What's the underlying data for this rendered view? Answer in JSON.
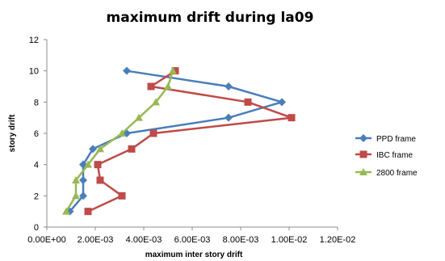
{
  "chart_data": {
    "type": "line",
    "title": "maximum drift during la09",
    "xlabel": "maximum inter story drift",
    "ylabel": "story  drift",
    "xlim": [
      0,
      0.012
    ],
    "ylim": [
      0,
      12
    ],
    "x_ticks": [
      0,
      0.002,
      0.004,
      0.006,
      0.008,
      0.01,
      0.012
    ],
    "x_tick_labels": [
      "0.00E+00",
      "2.00E-03",
      "4.00E-03",
      "6.00E-03",
      "8.00E-03",
      "1.00E-02",
      "1.20E-02"
    ],
    "y_ticks": [
      0,
      2,
      4,
      6,
      8,
      10,
      12
    ],
    "y_tick_labels": [
      "0",
      "2",
      "4",
      "6",
      "8",
      "10",
      "12"
    ],
    "grid": false,
    "legend_position": "right",
    "series": [
      {
        "name": "PPD frame",
        "color": "#4a7ebb",
        "marker": "diamond",
        "points": [
          [
            0.00095,
            1
          ],
          [
            0.0015,
            2
          ],
          [
            0.0015,
            3
          ],
          [
            0.0015,
            4
          ],
          [
            0.0019,
            5
          ],
          [
            0.0033,
            6
          ],
          [
            0.0075,
            7
          ],
          [
            0.0097,
            8
          ],
          [
            0.0075,
            9
          ],
          [
            0.0033,
            10
          ]
        ]
      },
      {
        "name": "IBC frame",
        "color": "#be4b48",
        "marker": "square",
        "points": [
          [
            0.0017,
            1
          ],
          [
            0.0031,
            2
          ],
          [
            0.0022,
            3
          ],
          [
            0.0021,
            4
          ],
          [
            0.0035,
            5
          ],
          [
            0.0044,
            6
          ],
          [
            0.0101,
            7
          ],
          [
            0.0083,
            8
          ],
          [
            0.0043,
            9
          ],
          [
            0.0053,
            10
          ]
        ]
      },
      {
        "name": "2800 frame",
        "color": "#98b954",
        "marker": "triangle",
        "points": [
          [
            0.0008,
            1
          ],
          [
            0.0012,
            2
          ],
          [
            0.0012,
            3
          ],
          [
            0.0017,
            4
          ],
          [
            0.0022,
            5
          ],
          [
            0.0031,
            6
          ],
          [
            0.0038,
            7
          ],
          [
            0.0045,
            8
          ],
          [
            0.005,
            9
          ],
          [
            0.0052,
            10
          ]
        ]
      }
    ]
  }
}
